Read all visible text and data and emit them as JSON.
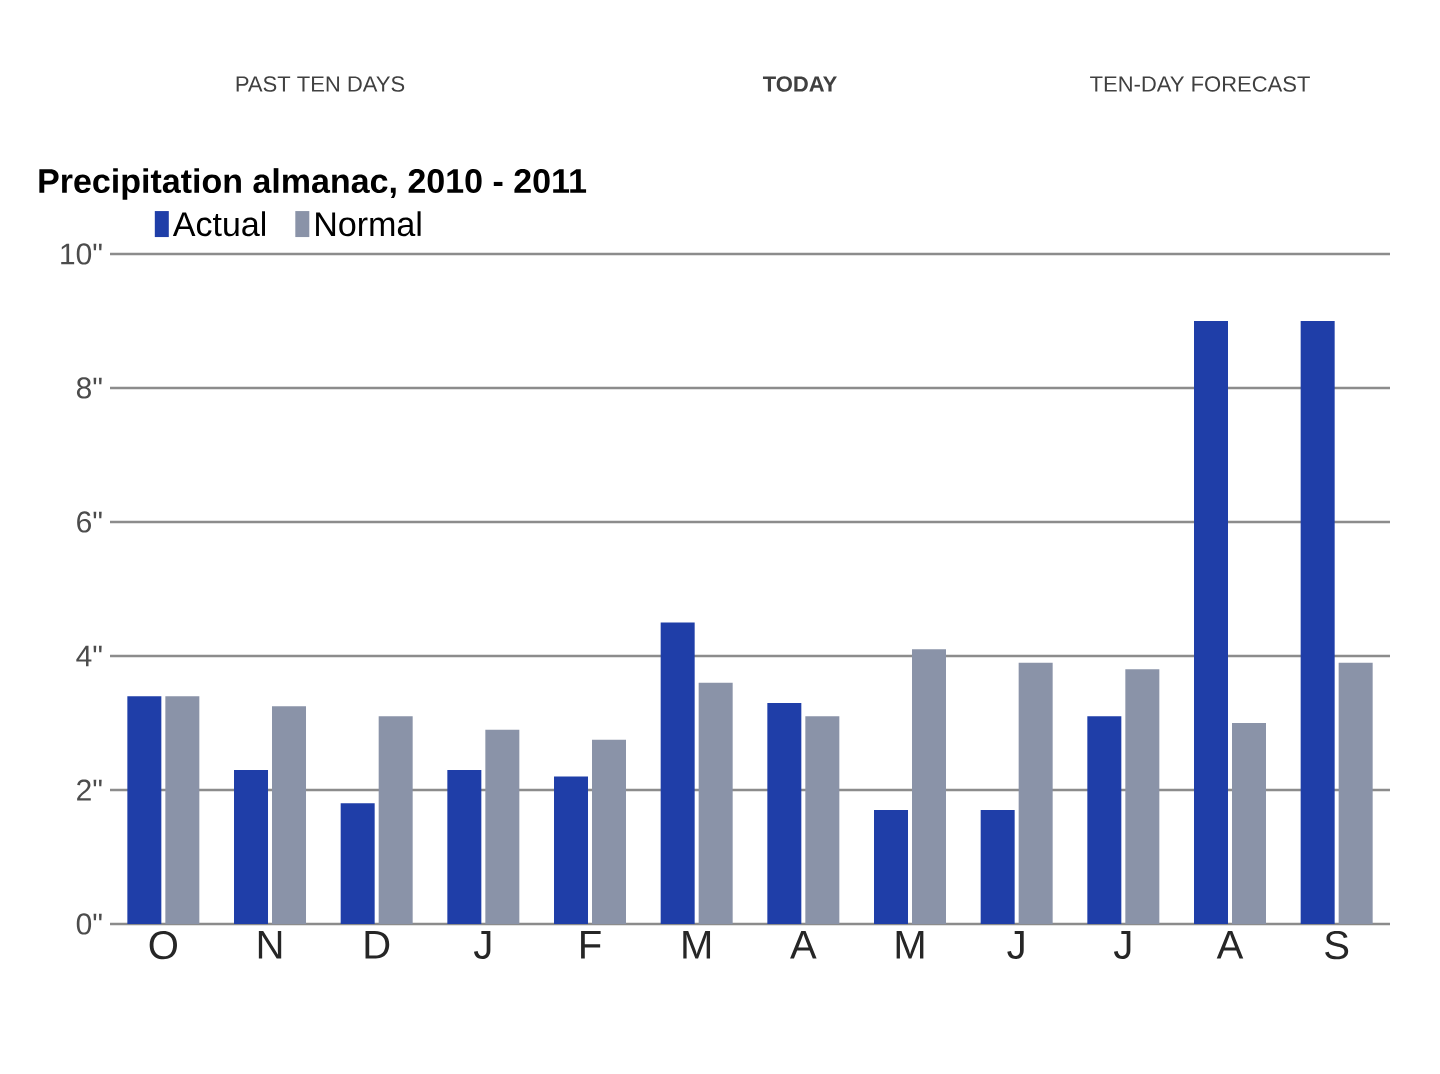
{
  "chart_data": {
    "type": "bar",
    "title": "Precipitation almanac, 2010 - 2011",
    "annotations": [
      "PAST TEN DAYS",
      "TODAY",
      "TEN-DAY FORECAST"
    ],
    "categories": [
      "O",
      "N",
      "D",
      "J",
      "F",
      "M",
      "A",
      "M",
      "J",
      "J",
      "A",
      "S"
    ],
    "series": [
      {
        "name": "Actual",
        "color": "#1f3ea8",
        "values": [
          3.4,
          2.3,
          1.8,
          2.3,
          2.2,
          4.5,
          3.3,
          1.7,
          1.7,
          3.1,
          9.0,
          9.0
        ]
      },
      {
        "name": "Normal",
        "color": "#8a93a8",
        "values": [
          3.4,
          3.25,
          3.1,
          2.9,
          2.75,
          3.6,
          3.1,
          4.1,
          3.9,
          3.8,
          3.0,
          3.9
        ]
      }
    ],
    "ylim": [
      0,
      10
    ],
    "yticks": [
      {
        "value": 0,
        "label": "0\""
      },
      {
        "value": 2,
        "label": "2\""
      },
      {
        "value": 4,
        "label": "4\""
      },
      {
        "value": 6,
        "label": "6\""
      },
      {
        "value": 8,
        "label": "8\""
      },
      {
        "value": 10,
        "label": "10\""
      }
    ],
    "grid": "y",
    "legend": "top left"
  }
}
